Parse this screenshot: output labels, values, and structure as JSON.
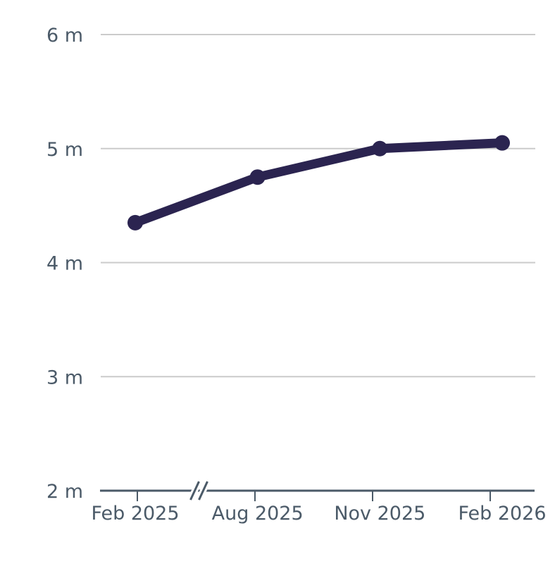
{
  "chart_data": {
    "type": "line",
    "title": "",
    "xlabel": "",
    "ylabel": "",
    "categories": [
      "Feb 2025",
      "Aug 2025",
      "Nov 2025",
      "Feb 2026"
    ],
    "series": [
      {
        "name": "series-1",
        "unit": "m",
        "values": [
          4.35,
          4.75,
          5.0,
          5.05
        ]
      }
    ],
    "ylim": [
      2,
      6
    ],
    "yticks": [
      {
        "value": 2,
        "label": "2 m"
      },
      {
        "value": 3,
        "label": "3 m"
      },
      {
        "value": 4,
        "label": "4 m"
      },
      {
        "value": 5,
        "label": "5 m"
      },
      {
        "value": 6,
        "label": "6 m"
      }
    ],
    "grid": "horizontal",
    "legend": "none",
    "axis_break": {
      "present": true,
      "symbol": "//",
      "between": [
        "Feb 2025",
        "Aug 2025"
      ]
    },
    "colors": {
      "line": "#2b2450",
      "point": "#2b2450",
      "axis": "#4b5a68",
      "tick_label": "#4b5a68",
      "grid": "#cbcbcb",
      "background": "#ffffff"
    }
  }
}
